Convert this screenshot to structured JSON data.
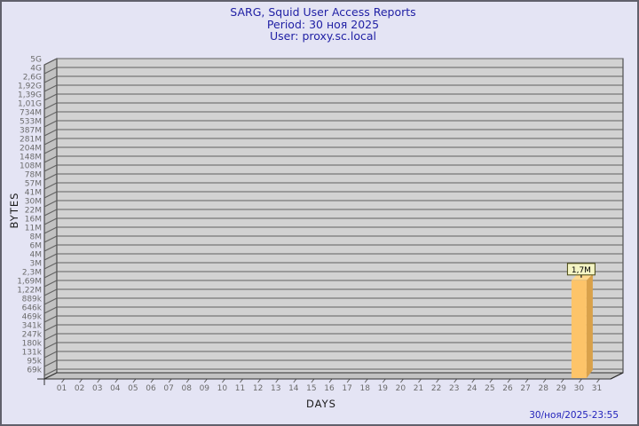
{
  "window": {
    "background_color": "#e4e4f4",
    "border_color": "#60606c"
  },
  "header": {
    "title": "SARG, Squid User Access Reports",
    "period": "Period: 30 ноя 2025",
    "user": "User: proxy.sc.local",
    "text_color": "#2121a5"
  },
  "footer": {
    "timestamp": "30/ноя/2025-23:55",
    "text_color": "#2323bb"
  },
  "chart_data": {
    "type": "bar",
    "title": "SARG, Squid User Access Reports",
    "subtitle": [
      "Period: 30 ноя 2025",
      "User: proxy.sc.local"
    ],
    "xlabel": "DAYS",
    "ylabel": "BYTES",
    "scale": "log",
    "grid": true,
    "legend": null,
    "y_tick_labels": [
      "5G",
      "4G",
      "2,6G",
      "1,92G",
      "1,39G",
      "1,01G",
      "734M",
      "533M",
      "387M",
      "281M",
      "204M",
      "148M",
      "108M",
      "78M",
      "57M",
      "41M",
      "30M",
      "22M",
      "16M",
      "11M",
      "8M",
      "6M",
      "4M",
      "3M",
      "2,3M",
      "1,69M",
      "1,22M",
      "889k",
      "646k",
      "469k",
      "341k",
      "247k",
      "180k",
      "131k",
      "95k",
      "69k"
    ],
    "categories": [
      "01",
      "02",
      "03",
      "04",
      "05",
      "06",
      "07",
      "08",
      "09",
      "10",
      "11",
      "12",
      "13",
      "14",
      "15",
      "16",
      "17",
      "18",
      "19",
      "20",
      "21",
      "22",
      "23",
      "24",
      "25",
      "26",
      "27",
      "28",
      "29",
      "30",
      "31"
    ],
    "values": [
      0,
      0,
      0,
      0,
      0,
      0,
      0,
      0,
      0,
      0,
      0,
      0,
      0,
      0,
      0,
      0,
      0,
      0,
      0,
      0,
      0,
      0,
      0,
      0,
      0,
      0,
      0,
      0,
      0,
      1700000,
      0
    ],
    "annotations": [
      {
        "category": "30",
        "label": "1,7M",
        "value": 1700000
      }
    ],
    "colors": {
      "plot_bg": "#d2d2d2",
      "wall": "#c2c2c2",
      "grid": "#606060",
      "outline": "#303030",
      "tick_text": "#6b6b6b",
      "bar_front": "#fdc469",
      "bar_side": "#d9a14a",
      "bar_top": "#ffd98f",
      "annotation_bg": "#f4f4c4",
      "annotation_border": "#45450f",
      "annotation_text": "#000000"
    }
  }
}
